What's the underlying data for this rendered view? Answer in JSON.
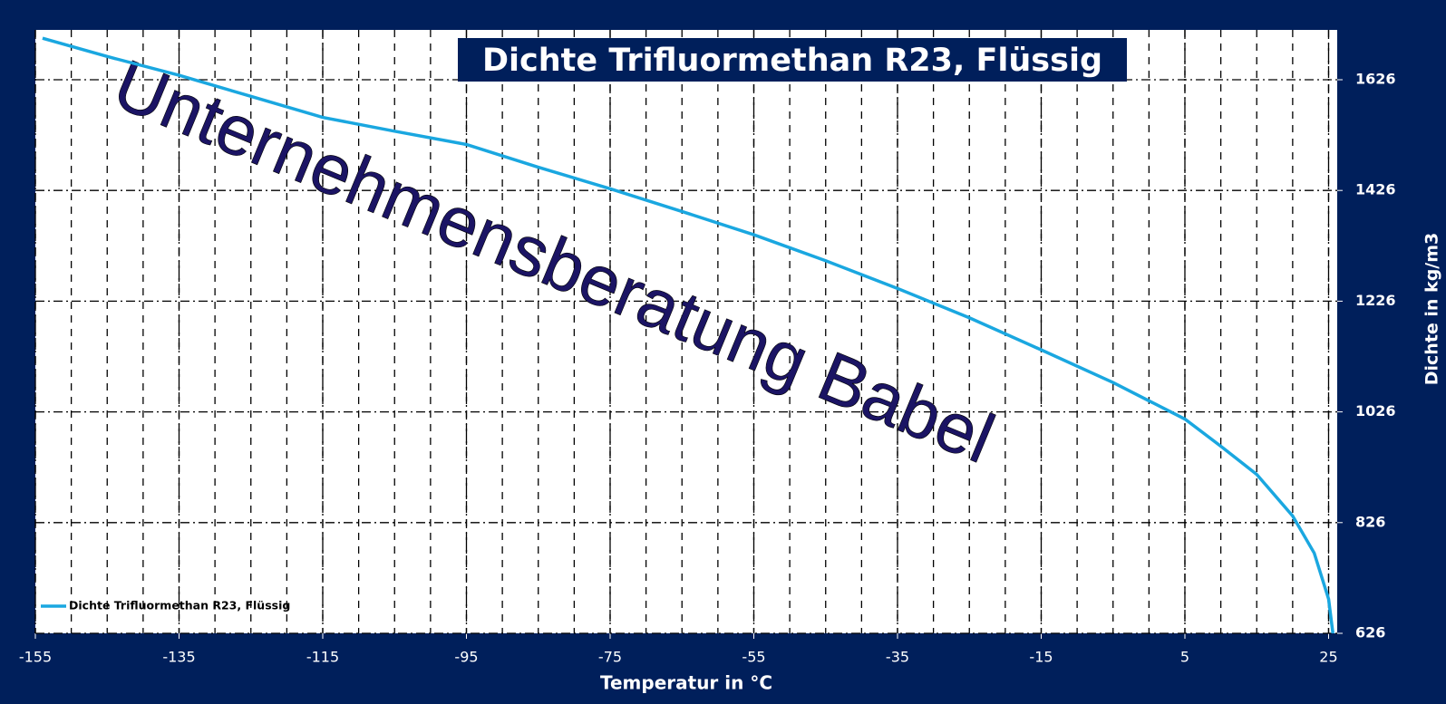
{
  "chart_data": {
    "type": "line",
    "title": "Dichte Trifluormethan R23, Flüssig",
    "watermark": "Unternehmensberatung Babel",
    "xlabel": "Temperatur in °C",
    "ylabel": "Dichte in kg/m3",
    "x": [
      -154,
      -145,
      -135,
      -125,
      -115,
      -105,
      -95,
      -85,
      -75,
      -65,
      -55,
      -45,
      -35,
      -25,
      -15,
      -5,
      5,
      10,
      15,
      20,
      23,
      25,
      25.6
    ],
    "series": [
      {
        "name": "Dichte Trifluormethan R23, Flüssig",
        "color": "#1aa7e0",
        "values": [
          1701,
          1668,
          1634,
          1596,
          1558,
          1533,
          1509,
          1468,
          1429,
          1388,
          1346,
          1299,
          1249,
          1196,
          1138,
          1079,
          1013,
          964,
          913,
          838,
          771,
          688,
          626
        ]
      }
    ],
    "xlim": [
      -155,
      26.2
    ],
    "xticks": [
      -155,
      -135,
      -115,
      -95,
      -75,
      -55,
      -35,
      -15,
      5,
      25
    ],
    "ylim": [
      626,
      1716
    ],
    "yticks": [
      626,
      826,
      1026,
      1226,
      1426,
      1626
    ],
    "xminor": 5,
    "grid": true,
    "legend": "lower-left"
  }
}
